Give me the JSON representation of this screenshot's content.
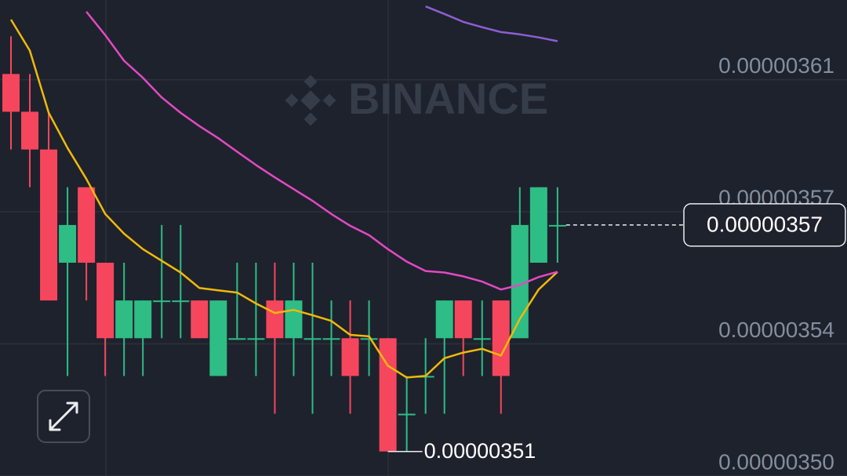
{
  "chart_data": {
    "type": "candlestick",
    "watermark": "BINANCE",
    "up_color": "#2ebd85",
    "down_color": "#f6465d",
    "grid": true,
    "ylim": [
      3.5035e-06,
      3.6296e-06
    ],
    "yticks": [
      {
        "value": 3.5035e-06,
        "label": "0.00000350"
      },
      {
        "value": 3.5385e-06,
        "label": "0.00000354"
      },
      {
        "value": 3.5735e-06,
        "label": "0.00000357"
      },
      {
        "value": 3.6085e-06,
        "label": "0.00000361"
      }
    ],
    "open": [
      3.61e-06,
      3.6e-06,
      3.59e-06,
      3.56e-06,
      3.58e-06,
      3.56e-06,
      3.54e-06,
      3.54e-06,
      3.55e-06,
      3.55e-06,
      3.55e-06,
      3.53e-06,
      3.54e-06,
      3.54e-06,
      3.55e-06,
      3.54e-06,
      3.54e-06,
      3.54e-06,
      3.54e-06,
      3.54e-06,
      3.54e-06,
      3.52e-06,
      3.53e-06,
      3.54e-06,
      3.55e-06,
      3.54e-06,
      3.55e-06,
      3.54e-06,
      3.56e-06,
      3.57e-06
    ],
    "high": [
      3.62e-06,
      3.61e-06,
      3.6e-06,
      3.58e-06,
      3.58e-06,
      3.56e-06,
      3.56e-06,
      3.55e-06,
      3.57e-06,
      3.57e-06,
      3.55e-06,
      3.55e-06,
      3.56e-06,
      3.56e-06,
      3.56e-06,
      3.56e-06,
      3.56e-06,
      3.55e-06,
      3.55e-06,
      3.55e-06,
      3.54e-06,
      3.53e-06,
      3.54e-06,
      3.55e-06,
      3.55e-06,
      3.55e-06,
      3.55e-06,
      3.58e-06,
      3.58e-06,
      3.58e-06
    ],
    "low": [
      3.59e-06,
      3.58e-06,
      3.55e-06,
      3.53e-06,
      3.55e-06,
      3.53e-06,
      3.53e-06,
      3.53e-06,
      3.54e-06,
      3.54e-06,
      3.54e-06,
      3.53e-06,
      3.54e-06,
      3.53e-06,
      3.52e-06,
      3.53e-06,
      3.52e-06,
      3.53e-06,
      3.52e-06,
      3.53e-06,
      3.51e-06,
      3.51e-06,
      3.52e-06,
      3.52e-06,
      3.53e-06,
      3.53e-06,
      3.52e-06,
      3.54e-06,
      3.56e-06,
      3.56e-06
    ],
    "close": [
      3.6e-06,
      3.59e-06,
      3.55e-06,
      3.57e-06,
      3.56e-06,
      3.54e-06,
      3.55e-06,
      3.55e-06,
      3.55e-06,
      3.55e-06,
      3.54e-06,
      3.55e-06,
      3.54e-06,
      3.54e-06,
      3.54e-06,
      3.55e-06,
      3.54e-06,
      3.54e-06,
      3.53e-06,
      3.54e-06,
      3.51e-06,
      3.52e-06,
      3.53e-06,
      3.55e-06,
      3.54e-06,
      3.54e-06,
      3.53e-06,
      3.57e-06,
      3.58e-06,
      3.57e-06
    ],
    "moving_averages": [
      {
        "color": "#f0b90b",
        "values": [
          3.6244e-06,
          3.6162e-06,
          3.5997e-06,
          3.5904e-06,
          3.5822e-06,
          3.5729e-06,
          3.5677e-06,
          3.5636e-06,
          3.5605e-06,
          3.5574e-06,
          3.5533e-06,
          3.5527e-06,
          3.5521e-06,
          3.5492e-06,
          3.5467e-06,
          3.5475e-06,
          3.5461e-06,
          3.5446e-06,
          3.5409e-06,
          3.5405e-06,
          3.5327e-06,
          3.5296e-06,
          3.53e-06,
          3.5347e-06,
          3.5362e-06,
          3.5372e-06,
          3.5354e-06,
          3.5451e-06,
          3.5529e-06,
          3.5576e-06
        ]
      },
      {
        "color": "#e349c3",
        "values": [
          null,
          null,
          null,
          null,
          3.6265e-06,
          3.6203e-06,
          3.6135e-06,
          3.609e-06,
          3.6038e-06,
          3.5997e-06,
          3.5962e-06,
          3.593e-06,
          3.5894e-06,
          3.5859e-06,
          3.5826e-06,
          3.5795e-06,
          3.5764e-06,
          3.5729e-06,
          3.5698e-06,
          3.5673e-06,
          3.5636e-06,
          3.5603e-06,
          3.5578e-06,
          3.5574e-06,
          3.5564e-06,
          3.555e-06,
          3.5529e-06,
          3.5541e-06,
          3.5562e-06,
          3.5576e-06
        ]
      },
      {
        "color": "#8c5fd3",
        "values": [
          null,
          null,
          null,
          null,
          null,
          null,
          null,
          null,
          null,
          null,
          null,
          null,
          null,
          null,
          null,
          null,
          null,
          null,
          null,
          null,
          null,
          null,
          3.6279e-06,
          3.6259e-06,
          3.6238e-06,
          3.6224e-06,
          3.6211e-06,
          3.6205e-06,
          3.6197e-06,
          3.6187e-06
        ]
      }
    ],
    "last_price": {
      "value": 3.57e-06,
      "label": "0.00000357"
    },
    "low_marker": {
      "value": 3.51e-06,
      "label": "0.00000351"
    }
  }
}
